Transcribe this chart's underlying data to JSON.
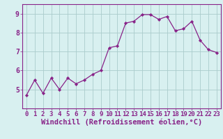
{
  "xlabel": "Windchill (Refroidissement éolien,°C)",
  "x": [
    0,
    1,
    2,
    3,
    4,
    5,
    6,
    7,
    8,
    9,
    10,
    11,
    12,
    13,
    14,
    15,
    16,
    17,
    18,
    19,
    20,
    21,
    22,
    23
  ],
  "y": [
    4.7,
    5.5,
    4.8,
    5.6,
    5.0,
    5.6,
    5.3,
    5.5,
    5.8,
    6.0,
    7.2,
    7.3,
    8.5,
    8.6,
    8.95,
    8.95,
    8.7,
    8.85,
    8.1,
    8.2,
    8.6,
    7.6,
    7.1,
    6.95
  ],
  "ylim": [
    4.0,
    9.5
  ],
  "yticks": [
    5,
    6,
    7,
    8,
    9
  ],
  "line_color": "#882288",
  "marker_color": "#882288",
  "bg_color": "#d8f0f0",
  "grid_color": "#aacccc",
  "axis_label_color": "#882288",
  "tick_label_color": "#882288",
  "border_color": "#882288",
  "tick_font_size": 6.5,
  "xlabel_font_size": 7.5
}
